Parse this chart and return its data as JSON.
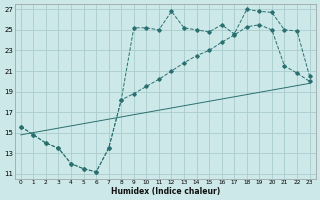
{
  "xlabel": "Humidex (Indice chaleur)",
  "bg_color": "#cce8e8",
  "grid_color": "#aacccc",
  "line_color": "#2a7070",
  "xlim": [
    -0.5,
    23.5
  ],
  "ylim": [
    10.5,
    27.5
  ],
  "xtick_vals": [
    0,
    1,
    2,
    3,
    4,
    5,
    6,
    7,
    8,
    9,
    10,
    11,
    12,
    13,
    14,
    15,
    16,
    17,
    18,
    19,
    20,
    21,
    22,
    23
  ],
  "ytick_vals": [
    11,
    13,
    15,
    17,
    19,
    21,
    23,
    25,
    27
  ],
  "curve1_x": [
    0,
    1,
    2,
    3,
    4,
    5,
    6,
    7,
    8,
    9,
    10,
    11,
    12,
    13,
    14,
    15,
    16,
    17,
    18,
    19,
    20,
    21,
    22,
    23
  ],
  "curve1_y": [
    15.6,
    14.8,
    14.0,
    13.5,
    12.0,
    11.5,
    11.2,
    13.5,
    18.2,
    25.2,
    25.2,
    25.0,
    26.8,
    25.2,
    25.0,
    24.8,
    25.5,
    24.6,
    27.0,
    26.8,
    26.7,
    25.0,
    24.9,
    20.5
  ],
  "curve2_x": [
    0,
    1,
    2,
    3,
    4,
    5,
    6,
    7,
    8,
    9,
    10,
    11,
    12,
    13,
    14,
    15,
    16,
    17,
    18,
    19,
    20,
    21,
    22,
    23
  ],
  "curve2_y": [
    15.6,
    14.8,
    14.0,
    13.5,
    12.0,
    11.5,
    11.2,
    13.5,
    18.2,
    18.8,
    19.5,
    20.2,
    21.0,
    21.8,
    22.5,
    23.0,
    23.8,
    24.5,
    25.3,
    25.5,
    25.0,
    21.5,
    20.8,
    20.0
  ],
  "line3_x": [
    0,
    23
  ],
  "line3_y": [
    14.8,
    19.8
  ]
}
